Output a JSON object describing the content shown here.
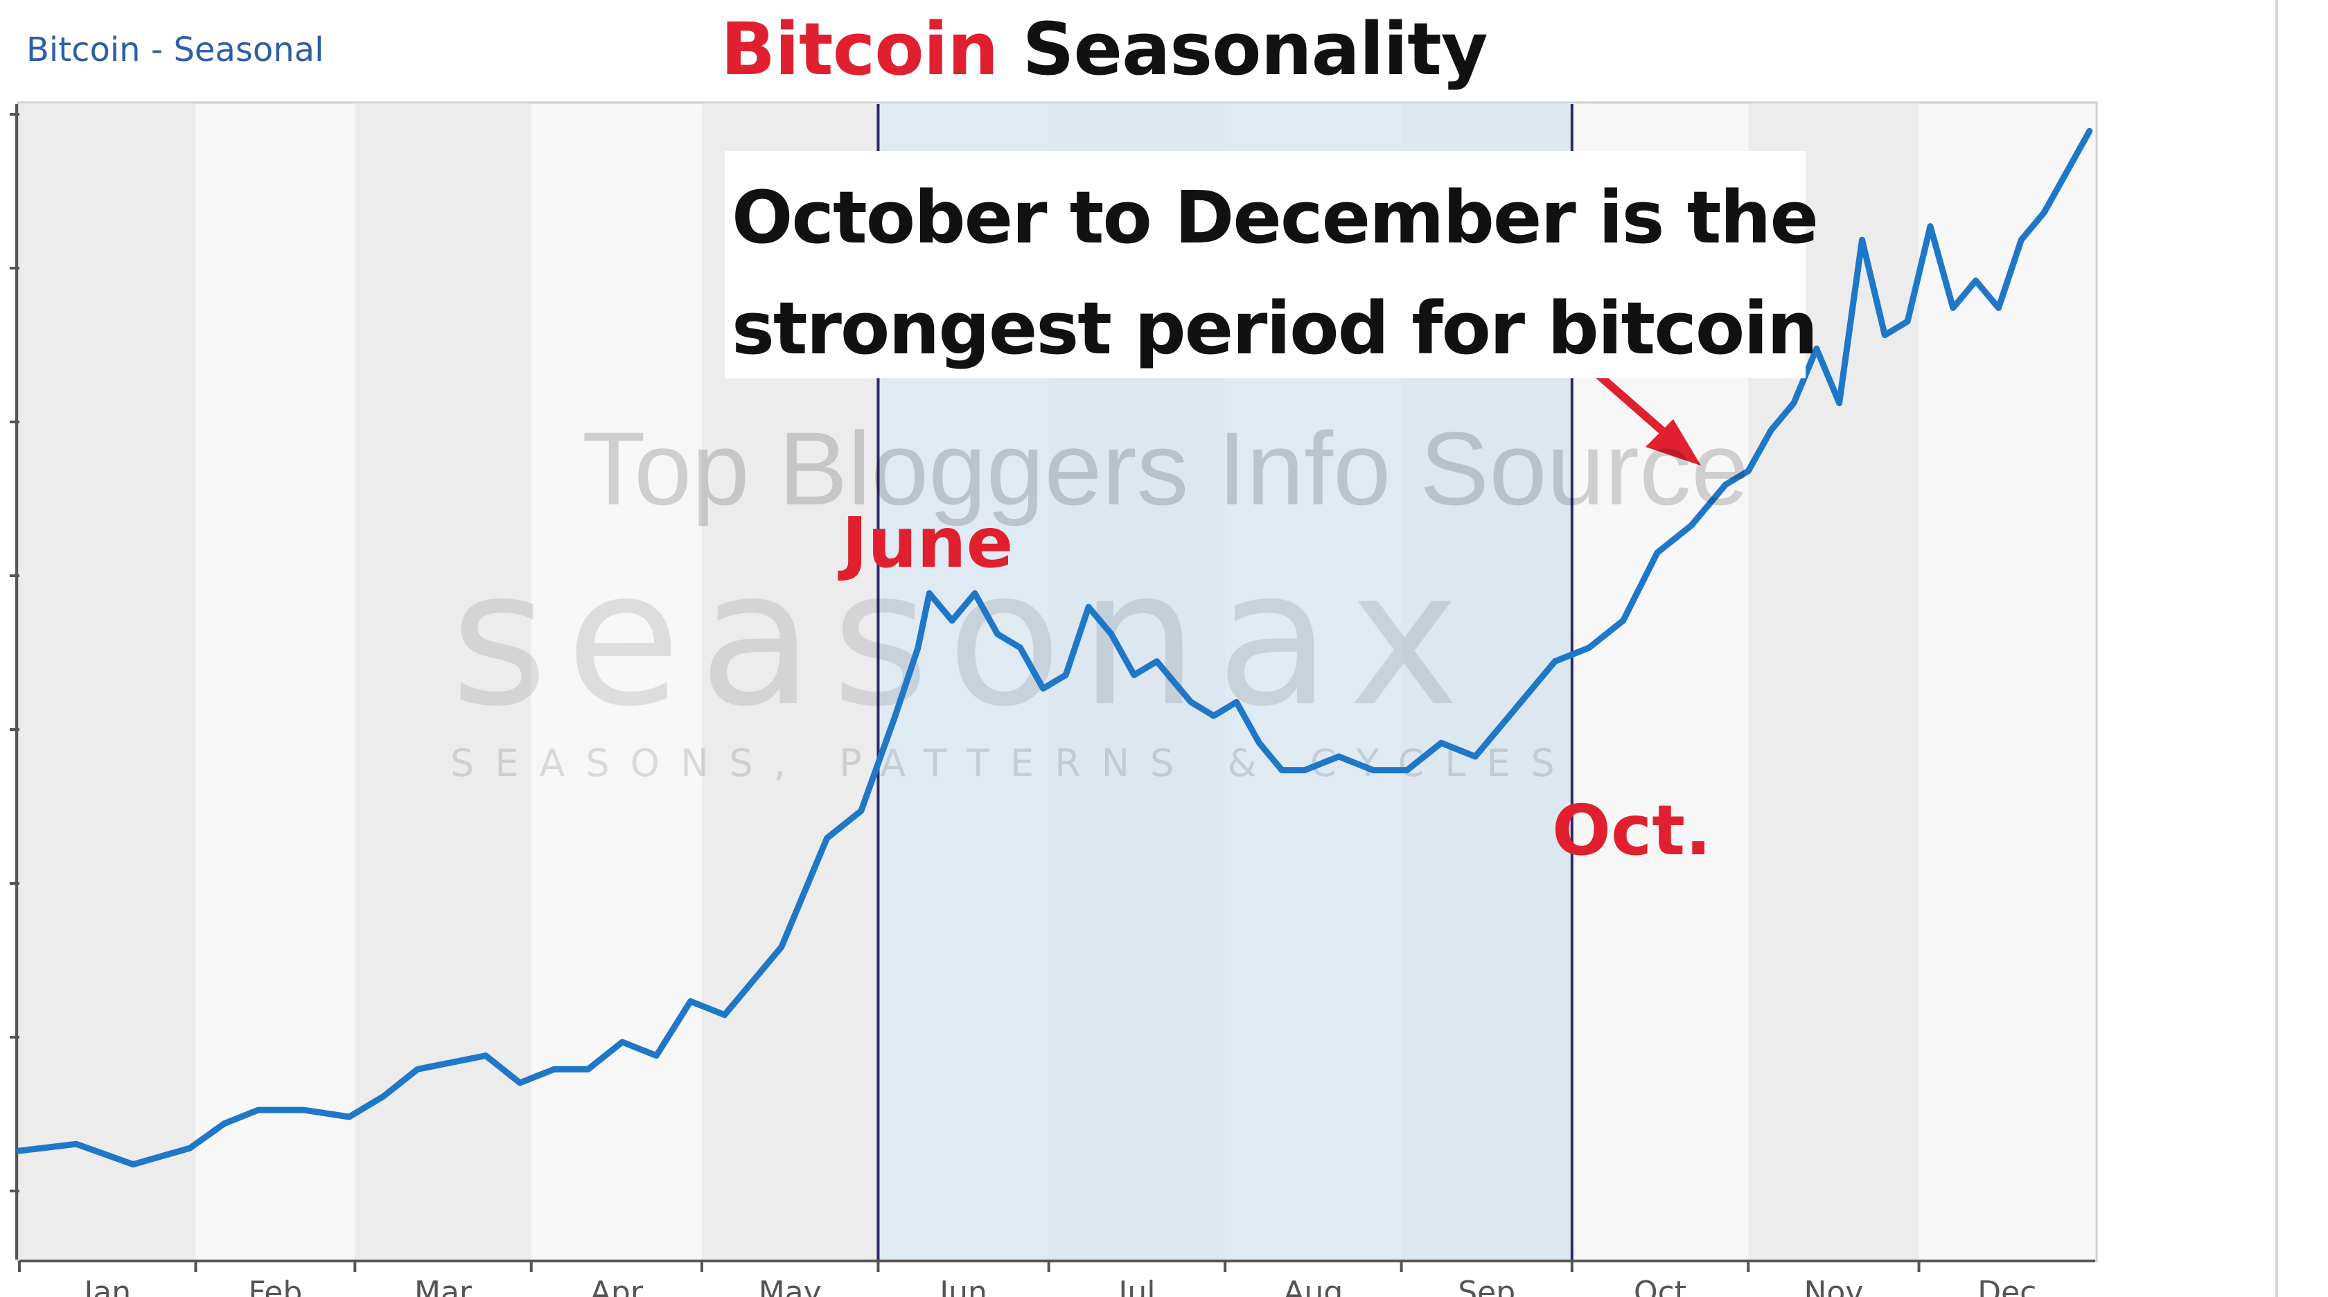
{
  "header": {
    "chart_label": "Bitcoin - Seasonal"
  },
  "title": {
    "part1": "Bitcoin",
    "part2": " Seasonality"
  },
  "annotation": {
    "line1": "October to December is the",
    "line2": "strongest period for bitcoin"
  },
  "watermark": {
    "text": "Top Bloggers Info Source",
    "logo_text": "seasonax",
    "logo_tagline": "SEASONS, PATTERNS & CYCLES"
  },
  "labels": {
    "june": "June",
    "october": "Oct."
  },
  "colors": {
    "line": "#1f77c8",
    "title_red": "#e0202e",
    "highlight": "#d7e6f2",
    "band_light": "#f7f7f7",
    "band_dark": "#ececec"
  },
  "chart_data": {
    "type": "line",
    "categories": [
      "Jan",
      "Feb",
      "Mar",
      "Apr",
      "May",
      "Jun",
      "Jul",
      "Aug",
      "Sep",
      "Oct",
      "Nov",
      "Dec"
    ],
    "xlim": [
      0,
      365
    ],
    "highlight_range": [
      "Jun",
      "Oct"
    ],
    "series": [
      {
        "x": [
          0,
          10,
          20,
          30,
          36,
          42,
          50,
          58,
          64,
          70,
          76,
          82,
          88,
          94,
          100,
          106,
          112,
          118,
          124,
          130,
          134,
          138,
          142,
          148,
          154,
          158,
          160,
          164,
          168,
          172,
          176,
          180,
          184,
          188,
          192,
          196,
          200,
          204,
          206,
          210,
          214,
          218,
          222,
          226,
          232,
          238,
          244,
          250,
          256,
          262,
          270,
          276,
          282,
          288,
          294,
          300,
          304,
          308,
          312,
          316,
          320,
          324,
          328,
          332,
          336,
          340,
          344,
          348,
          352,
          356,
          360,
          364
        ],
        "values": [
          3,
          3.5,
          2,
          3.2,
          5,
          6,
          6,
          5.5,
          7,
          9,
          9.5,
          10,
          8,
          9,
          9,
          11,
          10,
          14,
          13,
          16,
          18,
          22,
          26,
          28,
          35,
          40,
          44,
          42,
          44,
          41,
          40,
          37,
          38,
          43,
          41,
          38,
          39,
          37,
          36,
          35,
          36,
          33,
          31,
          31,
          32,
          31,
          31,
          33,
          32,
          35,
          39,
          40,
          42,
          47,
          49,
          52,
          53,
          56,
          58,
          62,
          58,
          70,
          63,
          64,
          71,
          65,
          67,
          65,
          70,
          72,
          75,
          78
        ]
      }
    ]
  }
}
